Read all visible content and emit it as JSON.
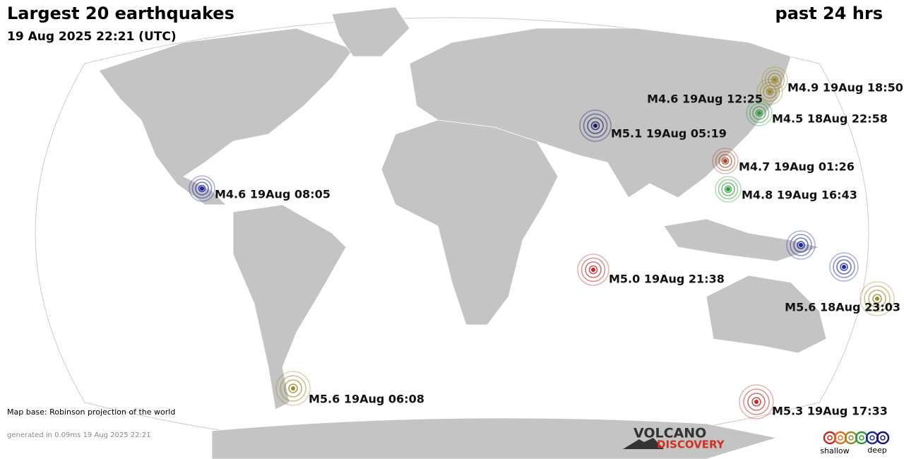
{
  "header": {
    "title": "Largest 20 earthquakes",
    "subtitle": "19 Aug 2025 22:21 (UTC)",
    "period": "past 24 hrs"
  },
  "quakes": [
    {
      "label": "M4.9 19Aug 18:50",
      "color": "#9a8a2a"
    },
    {
      "label": "M4.6 19Aug 12:25",
      "color": "#9a8a2a"
    },
    {
      "label": "M4.5 18Aug 22:58",
      "color": "#2f9a3a"
    },
    {
      "label": "M5.1 19Aug 05:19",
      "color": "#1a1a6e"
    },
    {
      "label": "M4.7 19Aug 01:26",
      "color": "#b0452a"
    },
    {
      "label": "M4.8 19Aug 16:43",
      "color": "#2f9a3a"
    },
    {
      "label": "M4.6 19Aug 08:05",
      "color": "#1f2aa0"
    },
    {
      "color": "#1f2aa0"
    },
    {
      "color": "#1f2aa0"
    },
    {
      "label": "M5.0 19Aug 21:38",
      "color": "#c02a2a"
    },
    {
      "label": "M5.6 18Aug 23:03",
      "color": "#9a8a2a"
    },
    {
      "label": "M5.6 19Aug 06:08",
      "color": "#9a8a2a"
    },
    {
      "label": "M5.3 19Aug 17:33",
      "color": "#c02a2a"
    }
  ],
  "footer": {
    "map_base": "Map base: Robinson projection of the world",
    "generated": "generated in 0.09ms 19 Aug 2025 22:21"
  },
  "logo": {
    "line1": "VOLCANO",
    "line2": "DISCOVERY"
  },
  "legend": {
    "colors": [
      "#c02a2a",
      "#e07020",
      "#9a8a2a",
      "#2f9a3a",
      "#1f2aa0",
      "#1a1a6e"
    ],
    "shallow": "shallow",
    "deep": "deep"
  }
}
